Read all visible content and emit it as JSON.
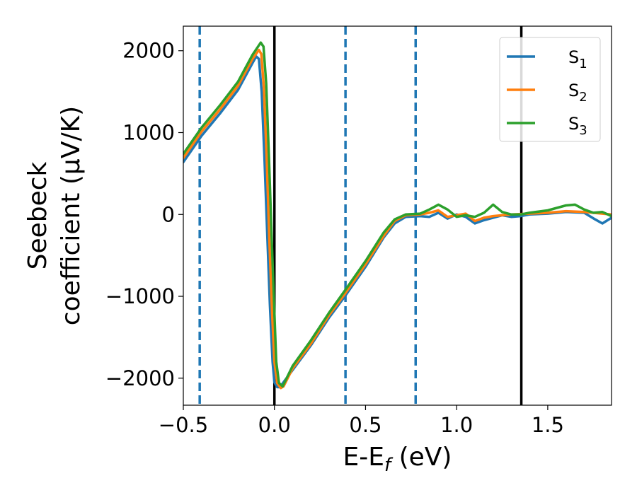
{
  "chart_data": {
    "type": "line",
    "xlabel": "E-E",
    "xlabel_sub": "f",
    "xlabel_unit": " (eV)",
    "ylabel_line1": "Seebeck",
    "ylabel_line2": "coefficient  (μV/K)",
    "xlim": [
      -0.5,
      1.85
    ],
    "ylim": [
      -2330,
      2300
    ],
    "xticks": [
      -0.5,
      0.0,
      0.5,
      1.0,
      1.5
    ],
    "xtick_labels": [
      "−0.5",
      "0.0",
      "0.5",
      "1.0",
      "1.5"
    ],
    "yticks": [
      2000,
      1000,
      0,
      -1000,
      -2000
    ],
    "ytick_labels": [
      "2000",
      "1000",
      "0",
      "−1000",
      "−2000"
    ],
    "grid": false,
    "legend_position": "top-right",
    "vertical_lines": [
      {
        "x": -0.41,
        "style": "dashed",
        "color": "#1f77b4"
      },
      {
        "x": 0.0,
        "style": "solid",
        "color": "#000000"
      },
      {
        "x": 0.39,
        "style": "dashed",
        "color": "#1f77b4"
      },
      {
        "x": 0.775,
        "style": "dashed",
        "color": "#1f77b4"
      },
      {
        "x": 1.355,
        "style": "solid",
        "color": "#000000"
      }
    ],
    "series": [
      {
        "name": "S",
        "sub": "1",
        "color": "#1f77b4",
        "points": [
          [
            -0.5,
            640
          ],
          [
            -0.4,
            960
          ],
          [
            -0.3,
            1230
          ],
          [
            -0.2,
            1520
          ],
          [
            -0.12,
            1850
          ],
          [
            -0.1,
            1930
          ],
          [
            -0.085,
            1900
          ],
          [
            -0.07,
            1500
          ],
          [
            -0.055,
            700
          ],
          [
            -0.04,
            -200
          ],
          [
            -0.025,
            -1100
          ],
          [
            -0.01,
            -1800
          ],
          [
            0.0,
            -2050
          ],
          [
            0.015,
            -2110
          ],
          [
            0.03,
            -2110
          ],
          [
            0.1,
            -1900
          ],
          [
            0.2,
            -1600
          ],
          [
            0.3,
            -1260
          ],
          [
            0.39,
            -990
          ],
          [
            0.5,
            -640
          ],
          [
            0.6,
            -280
          ],
          [
            0.66,
            -110
          ],
          [
            0.72,
            -30
          ],
          [
            0.8,
            -20
          ],
          [
            0.85,
            -30
          ],
          [
            0.9,
            20
          ],
          [
            0.95,
            -50
          ],
          [
            1.0,
            0
          ],
          [
            1.05,
            -30
          ],
          [
            1.1,
            -110
          ],
          [
            1.15,
            -70
          ],
          [
            1.2,
            -40
          ],
          [
            1.25,
            -10
          ],
          [
            1.3,
            -30
          ],
          [
            1.35,
            -20
          ],
          [
            1.4,
            0
          ],
          [
            1.5,
            10
          ],
          [
            1.6,
            30
          ],
          [
            1.7,
            20
          ],
          [
            1.76,
            -60
          ],
          [
            1.8,
            -110
          ],
          [
            1.85,
            -40
          ]
        ]
      },
      {
        "name": "S",
        "sub": "2",
        "color": "#ff7f0e",
        "points": [
          [
            -0.5,
            690
          ],
          [
            -0.4,
            1010
          ],
          [
            -0.3,
            1280
          ],
          [
            -0.2,
            1570
          ],
          [
            -0.12,
            1900
          ],
          [
            -0.085,
            2010
          ],
          [
            -0.072,
            1960
          ],
          [
            -0.058,
            1550
          ],
          [
            -0.043,
            700
          ],
          [
            -0.028,
            -300
          ],
          [
            -0.013,
            -1200
          ],
          [
            0.0,
            -1800
          ],
          [
            0.015,
            -2060
          ],
          [
            0.035,
            -2120
          ],
          [
            0.05,
            -2100
          ],
          [
            0.1,
            -1880
          ],
          [
            0.2,
            -1580
          ],
          [
            0.3,
            -1230
          ],
          [
            0.39,
            -960
          ],
          [
            0.5,
            -610
          ],
          [
            0.6,
            -260
          ],
          [
            0.66,
            -80
          ],
          [
            0.72,
            -10
          ],
          [
            0.8,
            0
          ],
          [
            0.85,
            20
          ],
          [
            0.9,
            50
          ],
          [
            0.95,
            -30
          ],
          [
            1.0,
            -10
          ],
          [
            1.05,
            10
          ],
          [
            1.1,
            -80
          ],
          [
            1.15,
            -40
          ],
          [
            1.2,
            -20
          ],
          [
            1.25,
            -10
          ],
          [
            1.3,
            0
          ],
          [
            1.4,
            10
          ],
          [
            1.5,
            20
          ],
          [
            1.6,
            40
          ],
          [
            1.7,
            30
          ],
          [
            1.8,
            10
          ],
          [
            1.85,
            0
          ]
        ]
      },
      {
        "name": "S",
        "sub": "3",
        "color": "#2ca02c",
        "points": [
          [
            -0.5,
            740
          ],
          [
            -0.4,
            1060
          ],
          [
            -0.3,
            1330
          ],
          [
            -0.2,
            1620
          ],
          [
            -0.12,
            1950
          ],
          [
            -0.075,
            2100
          ],
          [
            -0.06,
            2050
          ],
          [
            -0.045,
            1600
          ],
          [
            -0.03,
            700
          ],
          [
            -0.015,
            -300
          ],
          [
            0.0,
            -1200
          ],
          [
            0.01,
            -1800
          ],
          [
            0.025,
            -2060
          ],
          [
            0.045,
            -2100
          ],
          [
            0.1,
            -1850
          ],
          [
            0.2,
            -1540
          ],
          [
            0.3,
            -1200
          ],
          [
            0.39,
            -920
          ],
          [
            0.5,
            -570
          ],
          [
            0.6,
            -220
          ],
          [
            0.66,
            -60
          ],
          [
            0.72,
            0
          ],
          [
            0.8,
            10
          ],
          [
            0.85,
            60
          ],
          [
            0.9,
            120
          ],
          [
            0.95,
            60
          ],
          [
            1.0,
            -30
          ],
          [
            1.05,
            -10
          ],
          [
            1.1,
            -30
          ],
          [
            1.15,
            20
          ],
          [
            1.2,
            120
          ],
          [
            1.25,
            30
          ],
          [
            1.3,
            0
          ],
          [
            1.35,
            0
          ],
          [
            1.4,
            20
          ],
          [
            1.5,
            50
          ],
          [
            1.6,
            110
          ],
          [
            1.65,
            120
          ],
          [
            1.7,
            60
          ],
          [
            1.75,
            20
          ],
          [
            1.8,
            30
          ],
          [
            1.85,
            -20
          ]
        ]
      }
    ]
  }
}
